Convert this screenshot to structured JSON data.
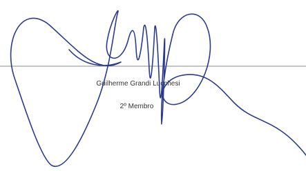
{
  "signature_block": {
    "name": "Guilherme Grandi Lucchesi",
    "role": "2º Membro"
  }
}
